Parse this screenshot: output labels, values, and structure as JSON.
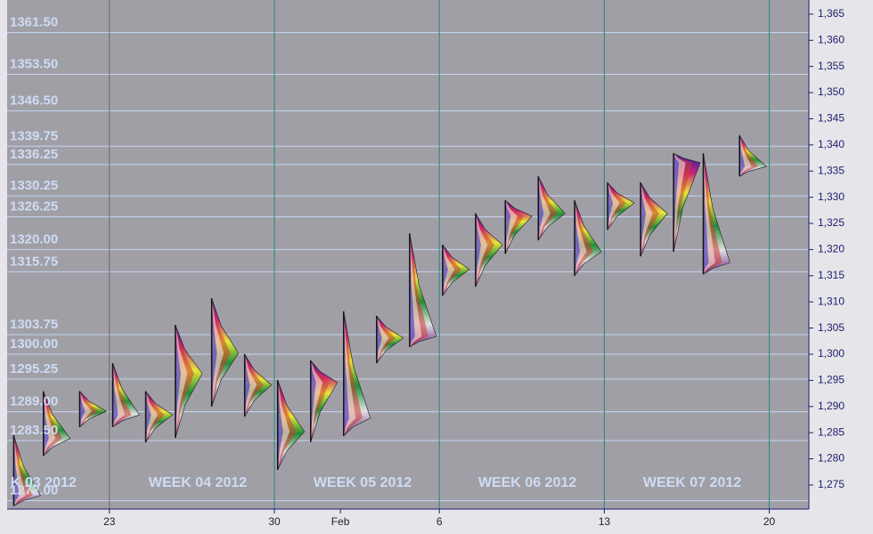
{
  "chart_data": {
    "type": "market-profile",
    "xlim": [
      -3.1,
      21.2
    ],
    "xticks": [
      {
        "value": 0,
        "label": "23"
      },
      {
        "value": 5,
        "label": "30"
      },
      {
        "value": 7,
        "label": "Feb"
      },
      {
        "value": 10,
        "label": "6"
      },
      {
        "value": 15,
        "label": "13"
      },
      {
        "value": 20,
        "label": "20"
      }
    ],
    "week_separators": [
      0,
      5,
      10,
      15,
      20
    ],
    "ylim": [
      1270.4,
      1367.7
    ],
    "yticks": [
      {
        "value": 1275,
        "label": "1,275"
      },
      {
        "value": 1280,
        "label": "1,280"
      },
      {
        "value": 1285,
        "label": "1,285"
      },
      {
        "value": 1290,
        "label": "1,290"
      },
      {
        "value": 1295,
        "label": "1,295"
      },
      {
        "value": 1300,
        "label": "1,300"
      },
      {
        "value": 1305,
        "label": "1,305"
      },
      {
        "value": 1310,
        "label": "1,310"
      },
      {
        "value": 1315,
        "label": "1,315"
      },
      {
        "value": 1320,
        "label": "1,320"
      },
      {
        "value": 1325,
        "label": "1,325"
      },
      {
        "value": 1330,
        "label": "1,330"
      },
      {
        "value": 1335,
        "label": "1,335"
      },
      {
        "value": 1340,
        "label": "1,340"
      },
      {
        "value": 1345,
        "label": "1,345"
      },
      {
        "value": 1350,
        "label": "1,350"
      },
      {
        "value": 1355,
        "label": "1,355"
      },
      {
        "value": 1360,
        "label": "1,360"
      },
      {
        "value": 1365,
        "label": "1,365"
      }
    ],
    "reference_levels": [
      {
        "value": 1361.5,
        "label": "1361.50"
      },
      {
        "value": 1353.5,
        "label": "1353.50"
      },
      {
        "value": 1346.5,
        "label": "1346.50"
      },
      {
        "value": 1339.75,
        "label": "1339.75"
      },
      {
        "value": 1336.25,
        "label": "1336.25"
      },
      {
        "value": 1330.25,
        "label": "1330.25"
      },
      {
        "value": 1326.25,
        "label": "1326.25"
      },
      {
        "value": 1320,
        "label": "1320.00"
      },
      {
        "value": 1315.75,
        "label": "1315.75"
      },
      {
        "value": 1303.75,
        "label": "1303.75"
      },
      {
        "value": 1300,
        "label": "1300.00"
      },
      {
        "value": 1295.25,
        "label": "1295.25"
      },
      {
        "value": 1289,
        "label": "1289.00"
      },
      {
        "value": 1283.5,
        "label": "1283.50"
      },
      {
        "value": 1272,
        "label": "1272.00"
      }
    ],
    "week_labels": [
      "K 03 2012",
      "WEEK 04 2012",
      "WEEK 05 2012",
      "WEEK 06 2012",
      "WEEK 07 2012"
    ],
    "sessions": {
      "x": [
        -2.9,
        -2.0,
        -0.9,
        0.1,
        1.1,
        2.0,
        3.1,
        4.1,
        5.1,
        6.1,
        7.1,
        8.1,
        9.1,
        10.1,
        11.1,
        12.0,
        13.0,
        14.1,
        15.1,
        16.1,
        17.1,
        18.0,
        19.1
      ],
      "high": [
        1284.5,
        1292.9,
        1292.9,
        1298.3,
        1292.9,
        1305.6,
        1310.7,
        1300.0,
        1295.1,
        1298.8,
        1308.2,
        1307.3,
        1323.1,
        1320.9,
        1326.9,
        1329.4,
        1334.0,
        1329.4,
        1332.8,
        1332.8,
        1338.4,
        1338.4,
        1341.8
      ],
      "low": [
        1271.0,
        1280.6,
        1286.1,
        1286.1,
        1283.2,
        1284.0,
        1290.0,
        1288.1,
        1277.9,
        1283.2,
        1284.4,
        1298.3,
        1301.4,
        1311.2,
        1312.9,
        1319.2,
        1321.8,
        1315.0,
        1323.8,
        1318.7,
        1319.6,
        1315.3,
        1334.0
      ],
      "poc": [
        1273.0,
        1283.9,
        1289.1,
        1288.4,
        1288.4,
        1296.3,
        1300.2,
        1294.1,
        1285.2,
        1294.6,
        1287.8,
        1303.1,
        1303.4,
        1316.2,
        1320.9,
        1326.4,
        1326.9,
        1319.6,
        1328.9,
        1326.9,
        1336.6,
        1317.5,
        1335.9
      ]
    }
  }
}
